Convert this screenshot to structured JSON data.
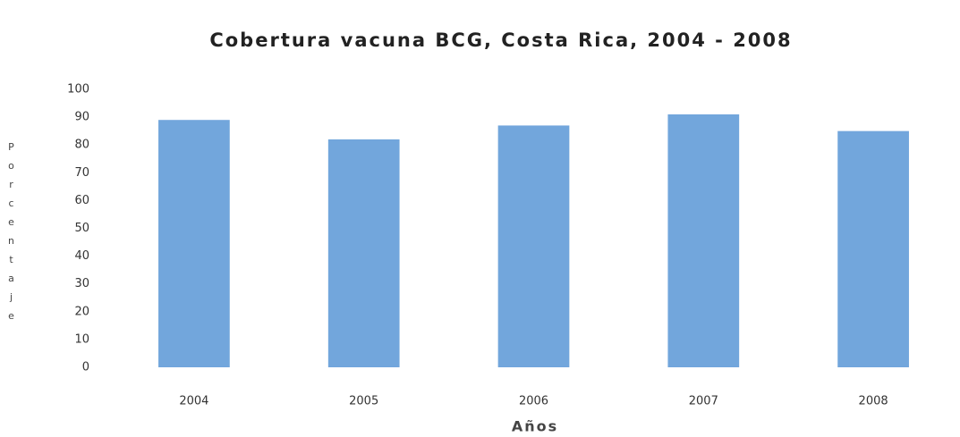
{
  "chart_data": {
    "type": "bar",
    "title": "Cobertura vacuna BCG, Costa Rica, 2004 - 2008",
    "x_label": "Años",
    "y_label": "Porcentaje",
    "categories": [
      "2004",
      "2005",
      "2006",
      "2007",
      "2008"
    ],
    "values": [
      89,
      82,
      87,
      91,
      85
    ],
    "color": "#72a6dc",
    "ylim": [
      0,
      100
    ],
    "yticks": [
      0,
      10,
      20,
      30,
      40,
      50,
      60,
      70,
      80,
      90,
      100
    ],
    "grid": false
  }
}
